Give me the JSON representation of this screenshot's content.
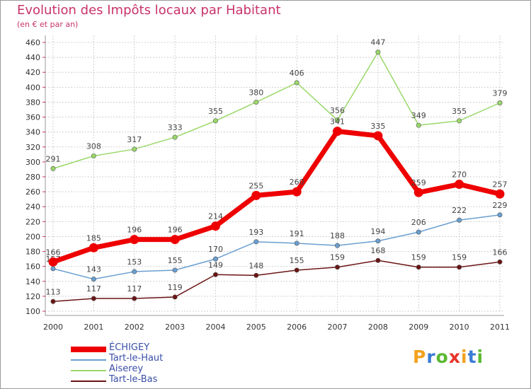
{
  "title": "Evolution des Impôts locaux par Habitant",
  "subtitle": "(en € et par an)",
  "colors": {
    "title": "#c8326b",
    "grid": "#d0d0d0",
    "axis": "#999999"
  },
  "chart_data": {
    "type": "line",
    "title": "Evolution des Impôts locaux par Habitant",
    "subtitle": "(en € et par an)",
    "xlabel": "",
    "ylabel": "",
    "x": [
      "2000",
      "2001",
      "2002",
      "2003",
      "2004",
      "2005",
      "2006",
      "2007",
      "2008",
      "2009",
      "2010",
      "2011"
    ],
    "ylim": [
      100,
      460
    ],
    "yticks": [
      100,
      120,
      140,
      160,
      180,
      200,
      220,
      240,
      260,
      280,
      300,
      320,
      340,
      360,
      380,
      400,
      420,
      440,
      460
    ],
    "grid": true,
    "legend_position": "bottom-left",
    "series": [
      {
        "name": "Tart-le-Bas",
        "color": "#6b1414",
        "values": [
          113,
          117,
          117,
          119,
          149,
          148,
          155,
          159,
          168,
          159,
          159,
          166
        ]
      },
      {
        "name": "Aiserey",
        "color": "#9ad86a",
        "values": [
          291,
          308,
          317,
          333,
          355,
          380,
          406,
          356,
          447,
          349,
          355,
          379
        ]
      },
      {
        "name": "Tart-le-Haut",
        "color": "#6a9fd0",
        "values": [
          157,
          143,
          153,
          155,
          170,
          193,
          191,
          188,
          194,
          206,
          222,
          229
        ]
      },
      {
        "name": "ÉCHIGEY",
        "color": "#ee0000",
        "values": [
          166,
          185,
          196,
          196,
          214,
          255,
          260,
          341,
          335,
          259,
          270,
          257
        ]
      }
    ]
  },
  "legend": [
    {
      "name": "ÉCHIGEY",
      "color": "#ee0000"
    },
    {
      "name": "Tart-le-Haut",
      "color": "#6a9fd0"
    },
    {
      "name": "Aiserey",
      "color": "#9ad86a"
    },
    {
      "name": "Tart-le-Bas",
      "color": "#6b1414"
    }
  ],
  "logo": {
    "letters": [
      "P",
      "r",
      "o",
      "x",
      "i",
      "t",
      "i"
    ],
    "colors": [
      "#f2a21d",
      "#3a7bd5",
      "#5bb832",
      "#e8342a",
      "#f2a21d",
      "#3a7bd5",
      "#5bb832"
    ]
  }
}
